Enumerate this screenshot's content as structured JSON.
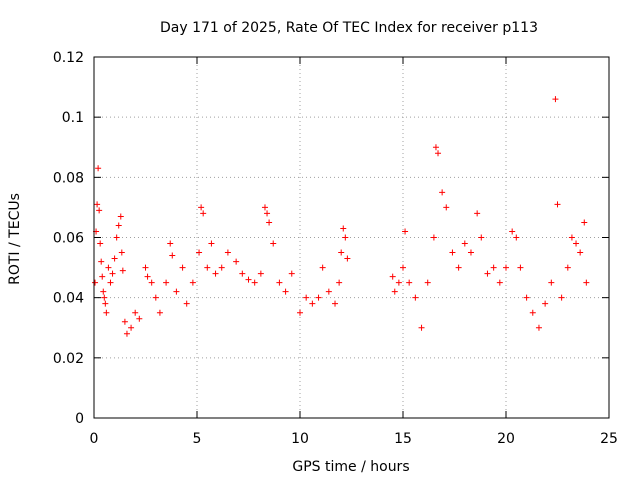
{
  "chart_data": {
    "type": "scatter",
    "title": "Day 171 of 2025, Rate Of TEC Index for receiver p113",
    "xlabel": "GPS time / hours",
    "ylabel": "ROTI / TECUs",
    "xlim": [
      0,
      25
    ],
    "ylim": [
      0,
      0.12
    ],
    "xticks": [
      "0",
      "5",
      "10",
      "15",
      "20",
      "25"
    ],
    "yticks": [
      "0",
      "0.02",
      "0.04",
      "0.06",
      "0.08",
      "0.1",
      "0.12"
    ],
    "grid": true,
    "marker": "plus",
    "color": "#ff0000",
    "series": [
      {
        "x": [
          0.05,
          0.1,
          0.15,
          0.2,
          0.25,
          0.3,
          0.35,
          0.4,
          0.45,
          0.5,
          0.55,
          0.6,
          0.7,
          0.8,
          0.9,
          1.0,
          1.1,
          1.2,
          1.3,
          1.35,
          1.4,
          1.5,
          1.6,
          1.8,
          2.0,
          2.2,
          2.5,
          2.6,
          2.8,
          3.0,
          3.2,
          3.5,
          3.7,
          3.8,
          4.0,
          4.3,
          4.5,
          4.8,
          5.1,
          5.2,
          5.3,
          5.5,
          5.7,
          5.9,
          6.2,
          6.5,
          6.9,
          7.2,
          7.5,
          7.8,
          8.1,
          8.3,
          8.4,
          8.5,
          8.7,
          9.0,
          9.3,
          9.6,
          10.0,
          10.3,
          10.6,
          10.9,
          11.1,
          11.4,
          11.7,
          11.9,
          12.0,
          12.1,
          12.2,
          12.3,
          14.5,
          14.6,
          14.8,
          15.0,
          15.1,
          15.3,
          15.6,
          15.9,
          16.2,
          16.5,
          16.6,
          16.7,
          16.9,
          17.1,
          17.4,
          17.7,
          18.0,
          18.3,
          18.6,
          18.8,
          19.1,
          19.4,
          19.7,
          20.0,
          20.3,
          20.5,
          20.7,
          21.0,
          21.3,
          21.6,
          21.9,
          22.2,
          22.4,
          22.5,
          22.7,
          23.0,
          23.2,
          23.4,
          23.6,
          23.8,
          23.9
        ],
        "y": [
          0.045,
          0.062,
          0.071,
          0.083,
          0.069,
          0.058,
          0.052,
          0.047,
          0.042,
          0.04,
          0.038,
          0.035,
          0.05,
          0.045,
          0.048,
          0.053,
          0.06,
          0.064,
          0.067,
          0.055,
          0.049,
          0.032,
          0.028,
          0.03,
          0.035,
          0.033,
          0.05,
          0.047,
          0.045,
          0.04,
          0.035,
          0.045,
          0.058,
          0.054,
          0.042,
          0.05,
          0.038,
          0.045,
          0.055,
          0.07,
          0.068,
          0.05,
          0.058,
          0.048,
          0.05,
          0.055,
          0.052,
          0.048,
          0.046,
          0.045,
          0.048,
          0.07,
          0.068,
          0.065,
          0.058,
          0.045,
          0.042,
          0.048,
          0.035,
          0.04,
          0.038,
          0.04,
          0.05,
          0.042,
          0.038,
          0.045,
          0.055,
          0.063,
          0.06,
          0.053,
          0.047,
          0.042,
          0.045,
          0.05,
          0.062,
          0.045,
          0.04,
          0.03,
          0.045,
          0.06,
          0.09,
          0.088,
          0.075,
          0.07,
          0.055,
          0.05,
          0.058,
          0.055,
          0.068,
          0.06,
          0.048,
          0.05,
          0.045,
          0.05,
          0.062,
          0.06,
          0.05,
          0.04,
          0.035,
          0.03,
          0.038,
          0.045,
          0.106,
          0.071,
          0.04,
          0.05,
          0.06,
          0.058,
          0.055,
          0.065,
          0.045
        ]
      }
    ]
  }
}
